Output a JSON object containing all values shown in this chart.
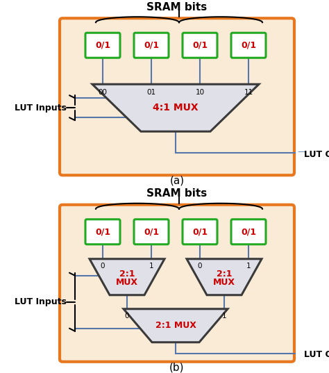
{
  "bg_color": "#FAEBD7",
  "outer_border_color": "#E87820",
  "sram_box_fill": "#FFFFFF",
  "sram_box_edge": "#22AA22",
  "mux_fill": "#E0E0E8",
  "mux_edge": "#3A3A3A",
  "text_red": "#CC0000",
  "text_black": "#000000",
  "line_color": "#5577AA",
  "title": "SRAM bits",
  "label_a": "(a)",
  "label_b": "(b)",
  "lut_inputs": "LUT Inputs",
  "lut_output": "LUT Output",
  "sram_label": "0/1",
  "mux_41_label": "4:1 MUX",
  "mux_21_label": "2:1 MUX"
}
